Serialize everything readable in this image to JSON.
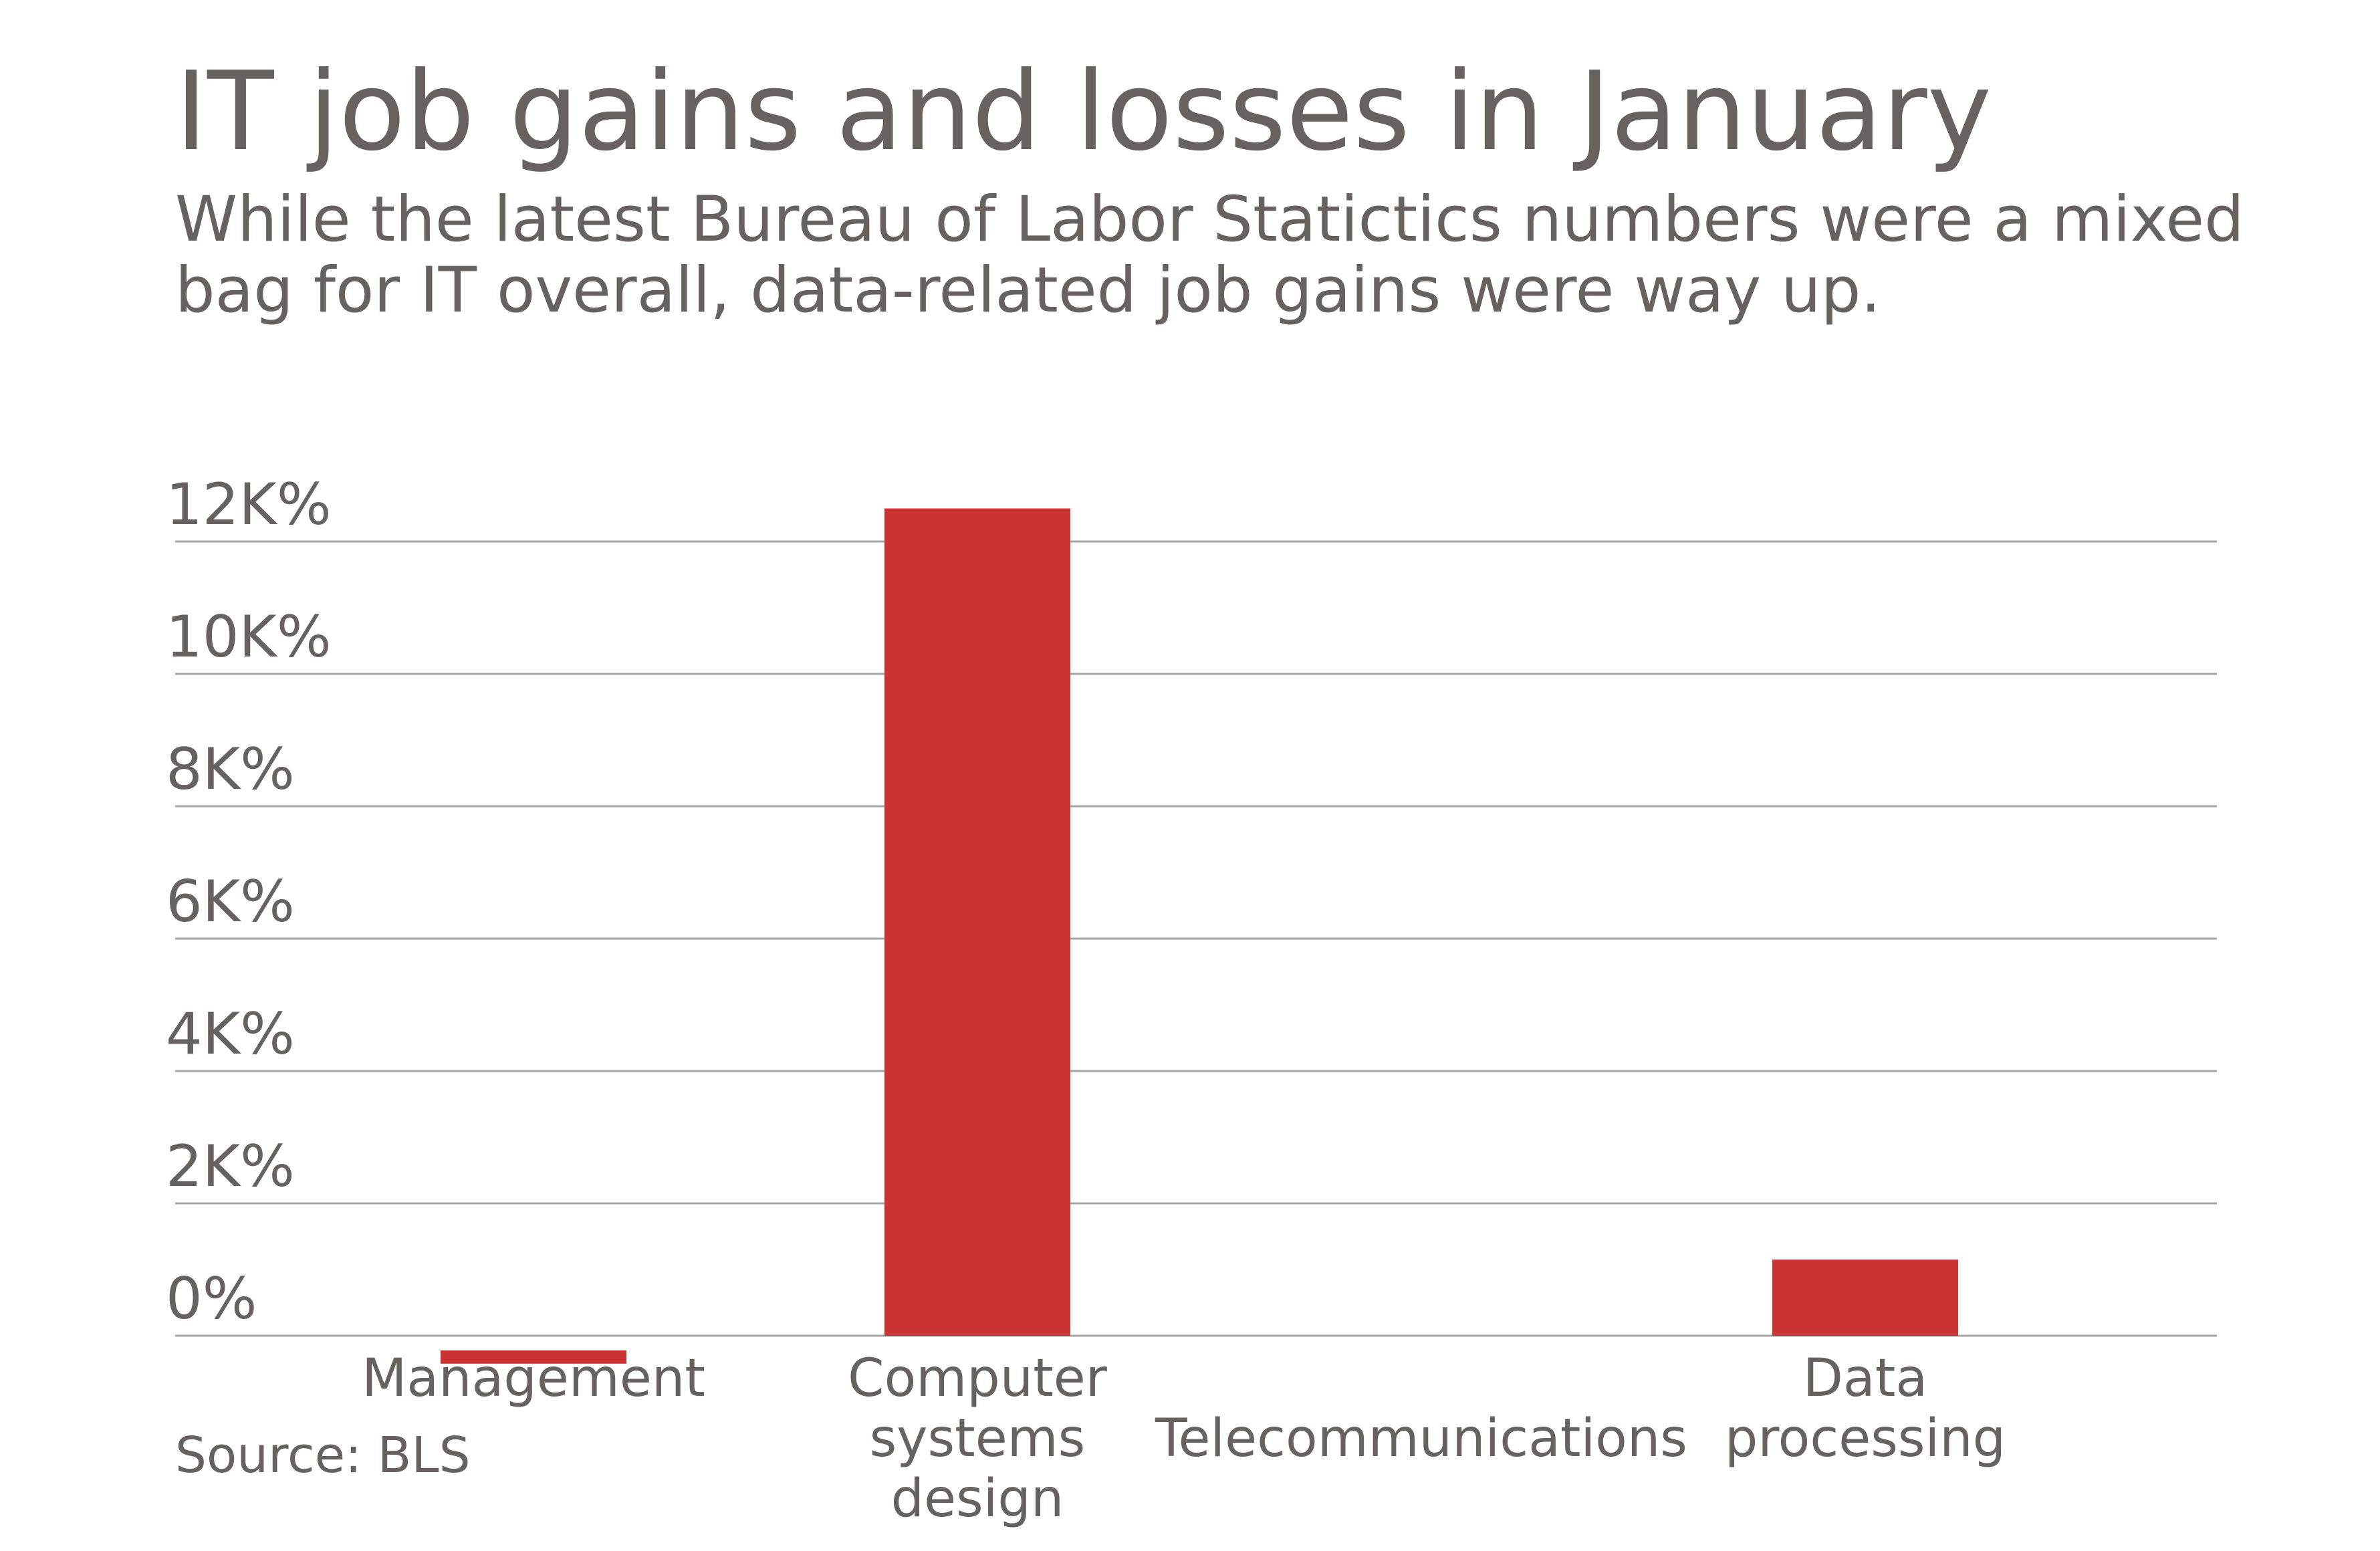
{
  "chart_data": {
    "type": "bar",
    "title": "IT job gains and losses in January",
    "subtitle": "While the latest Bureau of Labor Statictics numbers were a mixed bag for IT overall, data-related job gains were way up.",
    "source": "Source: BLS",
    "categories": [
      [
        "Management"
      ],
      [
        "Computer",
        "systems",
        "design"
      ],
      [
        "Telecommunications"
      ],
      [
        "Data",
        "processing"
      ]
    ],
    "values": [
      -200,
      12500,
      0,
      1150
    ],
    "yticks": [
      {
        "value": 0,
        "label": "0%"
      },
      {
        "value": 2000,
        "label": "2K%"
      },
      {
        "value": 4000,
        "label": "4K%"
      },
      {
        "value": 6000,
        "label": "6K%"
      },
      {
        "value": 8000,
        "label": "8K%"
      },
      {
        "value": 10000,
        "label": "10K%"
      },
      {
        "value": 12000,
        "label": "12K%"
      }
    ],
    "ylim": [
      -200,
      12500
    ],
    "grid": true,
    "bar_color": "#cc3333",
    "grid_color": "#a6a6a6",
    "text_color": "#67625f"
  }
}
